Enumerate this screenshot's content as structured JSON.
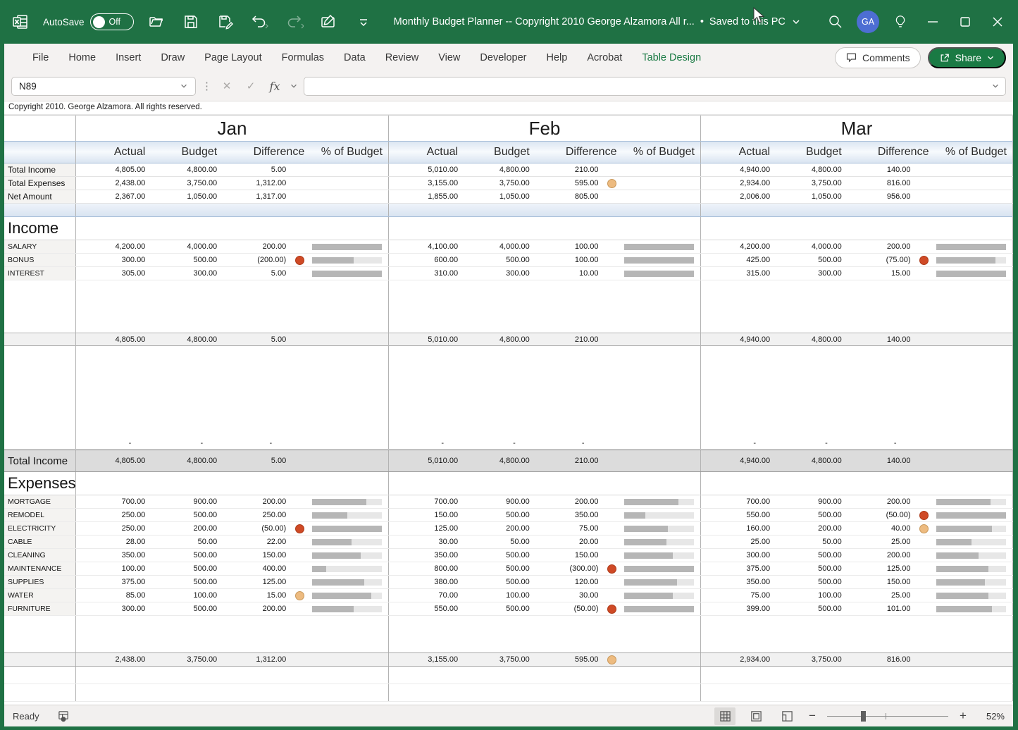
{
  "titlebar": {
    "autosave_label": "AutoSave",
    "autosave_state": "Off",
    "title": "Monthly Budget Planner -- Copyright 2010 George Alzamora  All r...",
    "status_separator": "•",
    "saved_status": "Saved to this PC",
    "avatar_initials": "GA"
  },
  "ribbon": {
    "tabs": [
      "File",
      "Home",
      "Insert",
      "Draw",
      "Page Layout",
      "Formulas",
      "Data",
      "Review",
      "View",
      "Developer",
      "Help",
      "Acrobat",
      "Table Design"
    ],
    "active_tab": "Table Design",
    "comments_label": "Comments",
    "share_label": "Share"
  },
  "formula_bar": {
    "name_box": "N89",
    "formula_value": ""
  },
  "copyright_note": "Copyright 2010.  George Alzamora.  All rights reserved.",
  "colors": {
    "titlebar_green": "#1f7144",
    "accent_green": "#1a7a44",
    "avatar_blue": "#4d6ed3",
    "bar_fill": "#b6b6b6",
    "dot_red": "#cf4a26",
    "dot_yellow": "#edbb80"
  },
  "icons": {
    "difference_flags": [
      "red-circle-icon",
      "yellow-circle-icon"
    ],
    "window_controls": [
      "minimize-icon",
      "maximize-icon",
      "close-icon"
    ],
    "quick_access": [
      "excel-app-icon",
      "open-icon",
      "save-icon",
      "save-as-icon",
      "undo-icon",
      "redo-icon",
      "pen-icon",
      "customize-toolbar-icon"
    ]
  },
  "sheet": {
    "months": [
      "Jan",
      "Feb",
      "Mar"
    ],
    "column_headers": [
      "Actual",
      "Budget",
      "Difference",
      "% of Budget"
    ],
    "summary_rows": [
      {
        "label": "Total Income",
        "months": [
          {
            "actual": "4,805.00",
            "budget": "4,800.00",
            "diff": "5.00",
            "icon": null
          },
          {
            "actual": "5,010.00",
            "budget": "4,800.00",
            "diff": "210.00",
            "icon": null
          },
          {
            "actual": "4,940.00",
            "budget": "4,800.00",
            "diff": "140.00",
            "icon": null
          }
        ]
      },
      {
        "label": "Total Expenses",
        "months": [
          {
            "actual": "2,438.00",
            "budget": "3,750.00",
            "diff": "1,312.00",
            "icon": null
          },
          {
            "actual": "3,155.00",
            "budget": "3,750.00",
            "diff": "595.00",
            "icon": "yellow"
          },
          {
            "actual": "2,934.00",
            "budget": "3,750.00",
            "diff": "816.00",
            "icon": null
          }
        ]
      },
      {
        "label": "Net Amount",
        "months": [
          {
            "actual": "2,367.00",
            "budget": "1,050.00",
            "diff": "1,317.00",
            "icon": null
          },
          {
            "actual": "1,855.00",
            "budget": "1,050.00",
            "diff": "805.00",
            "icon": null
          },
          {
            "actual": "2,006.00",
            "budget": "1,050.00",
            "diff": "956.00",
            "icon": null
          }
        ]
      }
    ],
    "income": {
      "title": "Income",
      "rows": [
        {
          "label": "SALARY",
          "months": [
            {
              "actual": "4,200.00",
              "budget": "4,000.00",
              "diff": "200.00",
              "icon": null,
              "bar": 1.0
            },
            {
              "actual": "4,100.00",
              "budget": "4,000.00",
              "diff": "100.00",
              "icon": null,
              "bar": 1.0
            },
            {
              "actual": "4,200.00",
              "budget": "4,000.00",
              "diff": "200.00",
              "icon": null,
              "bar": 1.0
            }
          ]
        },
        {
          "label": "BONUS",
          "months": [
            {
              "actual": "300.00",
              "budget": "500.00",
              "diff": "(200.00)",
              "icon": "red",
              "bar": 0.6
            },
            {
              "actual": "600.00",
              "budget": "500.00",
              "diff": "100.00",
              "icon": null,
              "bar": 1.0
            },
            {
              "actual": "425.00",
              "budget": "500.00",
              "diff": "(75.00)",
              "icon": "red",
              "bar": 0.85
            }
          ]
        },
        {
          "label": "INTEREST",
          "months": [
            {
              "actual": "305.00",
              "budget": "300.00",
              "diff": "5.00",
              "icon": null,
              "bar": 1.0
            },
            {
              "actual": "310.00",
              "budget": "300.00",
              "diff": "10.00",
              "icon": null,
              "bar": 1.0
            },
            {
              "actual": "315.00",
              "budget": "300.00",
              "diff": "15.00",
              "icon": null,
              "bar": 1.0
            }
          ]
        }
      ],
      "subtotal": {
        "months": [
          {
            "actual": "4,805.00",
            "budget": "4,800.00",
            "diff": "5.00",
            "icon": null
          },
          {
            "actual": "5,010.00",
            "budget": "4,800.00",
            "diff": "210.00",
            "icon": null
          },
          {
            "actual": "4,940.00",
            "budget": "4,800.00",
            "diff": "140.00",
            "icon": null
          }
        ]
      },
      "dash_symbol": "-",
      "total": {
        "label": "Total Income",
        "months": [
          {
            "actual": "4,805.00",
            "budget": "4,800.00",
            "diff": "5.00",
            "icon": null
          },
          {
            "actual": "5,010.00",
            "budget": "4,800.00",
            "diff": "210.00",
            "icon": null
          },
          {
            "actual": "4,940.00",
            "budget": "4,800.00",
            "diff": "140.00",
            "icon": null
          }
        ]
      }
    },
    "expenses": {
      "title": "Expenses",
      "rows": [
        {
          "label": "MORTGAGE",
          "months": [
            {
              "actual": "700.00",
              "budget": "900.00",
              "diff": "200.00",
              "icon": null,
              "bar": 0.78
            },
            {
              "actual": "700.00",
              "budget": "900.00",
              "diff": "200.00",
              "icon": null,
              "bar": 0.78
            },
            {
              "actual": "700.00",
              "budget": "900.00",
              "diff": "200.00",
              "icon": null,
              "bar": 0.78
            }
          ]
        },
        {
          "label": "REMODEL",
          "months": [
            {
              "actual": "250.00",
              "budget": "500.00",
              "diff": "250.00",
              "icon": null,
              "bar": 0.5
            },
            {
              "actual": "150.00",
              "budget": "500.00",
              "diff": "350.00",
              "icon": null,
              "bar": 0.3
            },
            {
              "actual": "550.00",
              "budget": "500.00",
              "diff": "(50.00)",
              "icon": "red",
              "bar": 1.0
            }
          ]
        },
        {
          "label": "ELECTRICITY",
          "months": [
            {
              "actual": "250.00",
              "budget": "200.00",
              "diff": "(50.00)",
              "icon": "red",
              "bar": 1.0
            },
            {
              "actual": "125.00",
              "budget": "200.00",
              "diff": "75.00",
              "icon": null,
              "bar": 0.62
            },
            {
              "actual": "160.00",
              "budget": "200.00",
              "diff": "40.00",
              "icon": "yellow",
              "bar": 0.8
            }
          ]
        },
        {
          "label": "CABLE",
          "months": [
            {
              "actual": "28.00",
              "budget": "50.00",
              "diff": "22.00",
              "icon": null,
              "bar": 0.56
            },
            {
              "actual": "30.00",
              "budget": "50.00",
              "diff": "20.00",
              "icon": null,
              "bar": 0.6
            },
            {
              "actual": "25.00",
              "budget": "50.00",
              "diff": "25.00",
              "icon": null,
              "bar": 0.5
            }
          ]
        },
        {
          "label": "CLEANING",
          "months": [
            {
              "actual": "350.00",
              "budget": "500.00",
              "diff": "150.00",
              "icon": null,
              "bar": 0.7
            },
            {
              "actual": "350.00",
              "budget": "500.00",
              "diff": "150.00",
              "icon": null,
              "bar": 0.7
            },
            {
              "actual": "300.00",
              "budget": "500.00",
              "diff": "200.00",
              "icon": null,
              "bar": 0.6
            }
          ]
        },
        {
          "label": "MAINTENANCE",
          "months": [
            {
              "actual": "100.00",
              "budget": "500.00",
              "diff": "400.00",
              "icon": null,
              "bar": 0.2
            },
            {
              "actual": "800.00",
              "budget": "500.00",
              "diff": "(300.00)",
              "icon": "red",
              "bar": 1.0
            },
            {
              "actual": "375.00",
              "budget": "500.00",
              "diff": "125.00",
              "icon": null,
              "bar": 0.75
            }
          ]
        },
        {
          "label": "SUPPLIES",
          "months": [
            {
              "actual": "375.00",
              "budget": "500.00",
              "diff": "125.00",
              "icon": null,
              "bar": 0.75
            },
            {
              "actual": "380.00",
              "budget": "500.00",
              "diff": "120.00",
              "icon": null,
              "bar": 0.76
            },
            {
              "actual": "350.00",
              "budget": "500.00",
              "diff": "150.00",
              "icon": null,
              "bar": 0.7
            }
          ]
        },
        {
          "label": "WATER",
          "months": [
            {
              "actual": "85.00",
              "budget": "100.00",
              "diff": "15.00",
              "icon": "yellow",
              "bar": 0.85
            },
            {
              "actual": "70.00",
              "budget": "100.00",
              "diff": "30.00",
              "icon": null,
              "bar": 0.7
            },
            {
              "actual": "75.00",
              "budget": "100.00",
              "diff": "25.00",
              "icon": null,
              "bar": 0.75
            }
          ]
        },
        {
          "label": "FURNITURE",
          "months": [
            {
              "actual": "300.00",
              "budget": "500.00",
              "diff": "200.00",
              "icon": null,
              "bar": 0.6
            },
            {
              "actual": "550.00",
              "budget": "500.00",
              "diff": "(50.00)",
              "icon": "red",
              "bar": 1.0
            },
            {
              "actual": "399.00",
              "budget": "500.00",
              "diff": "101.00",
              "icon": null,
              "bar": 0.8
            }
          ]
        }
      ],
      "total": {
        "months": [
          {
            "actual": "2,438.00",
            "budget": "3,750.00",
            "diff": "1,312.00",
            "icon": null
          },
          {
            "actual": "3,155.00",
            "budget": "3,750.00",
            "diff": "595.00",
            "icon": "yellow"
          },
          {
            "actual": "2,934.00",
            "budget": "3,750.00",
            "diff": "816.00",
            "icon": null
          }
        ]
      }
    }
  },
  "status_bar": {
    "ready_label": "Ready",
    "zoom_level": "52%",
    "views": [
      "normal",
      "page-layout",
      "page-break-preview"
    ]
  }
}
